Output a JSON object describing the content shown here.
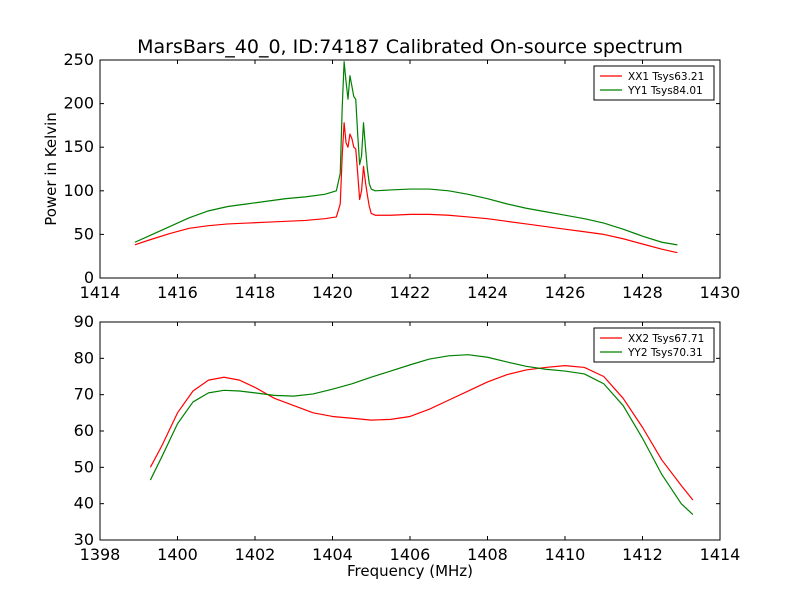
{
  "title": "MarsBars_40_0, ID:74187 Calibrated On-source spectrum",
  "chart_data": [
    {
      "type": "line",
      "title": "MarsBars_40_0, ID:74187 Calibrated On-source spectrum",
      "xlabel": "",
      "ylabel": "Power in Kelvin",
      "xlim": [
        1414,
        1430
      ],
      "ylim": [
        0,
        250
      ],
      "xticks": [
        1414,
        1416,
        1418,
        1420,
        1422,
        1424,
        1426,
        1428,
        1430
      ],
      "yticks": [
        0,
        50,
        100,
        150,
        200,
        250
      ],
      "legend": "upper-right",
      "grid": false,
      "series": [
        {
          "name": "XX1 Tsys63.21",
          "color": "#ff0000",
          "x": [
            1414.9,
            1415.3,
            1415.8,
            1416.3,
            1416.8,
            1417.3,
            1417.8,
            1418.3,
            1418.8,
            1419.3,
            1419.8,
            1420.1,
            1420.2,
            1420.25,
            1420.3,
            1420.35,
            1420.4,
            1420.45,
            1420.5,
            1420.55,
            1420.6,
            1420.65,
            1420.7,
            1420.75,
            1420.8,
            1420.85,
            1420.9,
            1420.95,
            1421.0,
            1421.1,
            1421.5,
            1422.0,
            1422.5,
            1423.0,
            1423.5,
            1424.0,
            1424.5,
            1425.0,
            1425.5,
            1426.0,
            1426.5,
            1427.0,
            1427.5,
            1428.0,
            1428.5,
            1428.9
          ],
          "values": [
            38,
            44,
            51,
            57,
            60,
            62,
            63,
            64,
            65,
            66,
            68,
            70,
            85,
            140,
            178,
            155,
            150,
            165,
            160,
            150,
            148,
            120,
            90,
            100,
            128,
            110,
            95,
            82,
            74,
            72,
            72,
            73,
            73,
            72,
            70,
            68,
            65,
            62,
            59,
            56,
            53,
            50,
            45,
            39,
            33,
            29
          ]
        },
        {
          "name": "YY1 Tsys84.01",
          "color": "#008000",
          "x": [
            1414.9,
            1415.3,
            1415.8,
            1416.3,
            1416.8,
            1417.3,
            1417.8,
            1418.3,
            1418.8,
            1419.3,
            1419.8,
            1420.1,
            1420.2,
            1420.25,
            1420.3,
            1420.35,
            1420.4,
            1420.45,
            1420.5,
            1420.55,
            1420.6,
            1420.65,
            1420.7,
            1420.75,
            1420.8,
            1420.85,
            1420.9,
            1420.95,
            1421.0,
            1421.1,
            1421.5,
            1422.0,
            1422.5,
            1423.0,
            1423.5,
            1424.0,
            1424.5,
            1425.0,
            1425.5,
            1426.0,
            1426.5,
            1427.0,
            1427.5,
            1428.0,
            1428.5,
            1428.9
          ],
          "values": [
            41,
            49,
            59,
            69,
            77,
            82,
            85,
            88,
            91,
            93,
            96,
            100,
            120,
            195,
            248,
            225,
            205,
            232,
            220,
            208,
            205,
            165,
            130,
            140,
            178,
            150,
            125,
            108,
            102,
            100,
            101,
            102,
            102,
            100,
            96,
            91,
            85,
            80,
            76,
            72,
            68,
            63,
            56,
            48,
            41,
            38
          ]
        }
      ]
    },
    {
      "type": "line",
      "title": "",
      "xlabel": "Frequency (MHz)",
      "ylabel": "",
      "xlim": [
        1398,
        1414
      ],
      "ylim": [
        30,
        90
      ],
      "xticks": [
        1398,
        1400,
        1402,
        1404,
        1406,
        1408,
        1410,
        1412,
        1414
      ],
      "yticks": [
        30,
        40,
        50,
        60,
        70,
        80,
        90
      ],
      "legend": "upper-right",
      "grid": false,
      "series": [
        {
          "name": "XX2 Tsys67.71",
          "color": "#ff0000",
          "x": [
            1399.3,
            1399.6,
            1400.0,
            1400.4,
            1400.8,
            1401.2,
            1401.6,
            1402.0,
            1402.5,
            1403.0,
            1403.5,
            1404.0,
            1404.5,
            1405.0,
            1405.5,
            1406.0,
            1406.5,
            1407.0,
            1407.5,
            1408.0,
            1408.5,
            1409.0,
            1409.5,
            1410.0,
            1410.5,
            1411.0,
            1411.5,
            1412.0,
            1412.5,
            1413.0,
            1413.3
          ],
          "values": [
            50,
            56,
            65,
            71,
            74,
            74.8,
            74,
            72,
            69,
            67,
            65,
            64,
            63.5,
            63,
            63.2,
            64,
            66,
            68.5,
            71,
            73.5,
            75.5,
            76.8,
            77.5,
            78,
            77.5,
            75,
            69,
            61,
            52,
            45,
            41
          ]
        },
        {
          "name": "YY2 Tsys70.31",
          "color": "#008000",
          "x": [
            1399.3,
            1399.6,
            1400.0,
            1400.4,
            1400.8,
            1401.2,
            1401.6,
            1402.0,
            1402.5,
            1403.0,
            1403.5,
            1404.0,
            1404.5,
            1405.0,
            1405.5,
            1406.0,
            1406.5,
            1407.0,
            1407.5,
            1408.0,
            1408.5,
            1409.0,
            1409.5,
            1410.0,
            1410.5,
            1411.0,
            1411.5,
            1412.0,
            1412.5,
            1413.0,
            1413.3
          ],
          "values": [
            46.5,
            53,
            62,
            68,
            70.5,
            71.2,
            71,
            70.5,
            69.8,
            69.6,
            70.2,
            71.5,
            73,
            74.8,
            76.5,
            78.2,
            79.8,
            80.7,
            81,
            80.3,
            79,
            77.8,
            77,
            76.5,
            75.7,
            73,
            67,
            58,
            48,
            40,
            37
          ]
        }
      ]
    }
  ]
}
